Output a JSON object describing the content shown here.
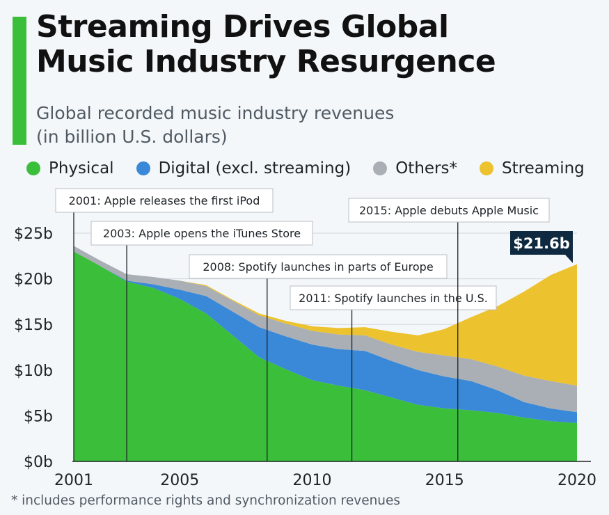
{
  "header": {
    "title_line1": "Streaming Drives Global",
    "title_line2": "Music Industry Resurgence",
    "subtitle_line1": "Global recorded music industry revenues",
    "subtitle_line2": "(in billion U.S. dollars)"
  },
  "footnote": "* includes performance rights and synchronization revenues",
  "colors": {
    "physical": "#3bbf3b",
    "digital": "#3a88d8",
    "others": "#a9afb5",
    "streaming": "#ecc22e",
    "accent": "#3bbf3b",
    "callout_bg": "#0f2a40"
  },
  "chart_data": {
    "type": "area",
    "stacked": true,
    "x": [
      2001,
      2002,
      2003,
      2004,
      2005,
      2006,
      2007,
      2008,
      2009,
      2010,
      2011,
      2012,
      2013,
      2014,
      2015,
      2016,
      2017,
      2018,
      2019,
      2020
    ],
    "series": [
      {
        "name": "Physical",
        "values": [
          23.0,
          21.4,
          19.7,
          19.0,
          17.8,
          16.2,
          13.8,
          11.4,
          10.1,
          8.9,
          8.3,
          7.8,
          7.0,
          6.2,
          5.8,
          5.6,
          5.3,
          4.8,
          4.4,
          4.2
        ]
      },
      {
        "name": "Digital (excl. streaming)",
        "values": [
          0.0,
          0.0,
          0.1,
          0.4,
          1.0,
          1.9,
          2.6,
          3.3,
          3.6,
          3.9,
          4.0,
          4.3,
          4.0,
          3.8,
          3.5,
          3.2,
          2.5,
          1.7,
          1.4,
          1.2
        ]
      },
      {
        "name": "Others*",
        "values": [
          0.6,
          0.6,
          0.7,
          0.8,
          1.0,
          1.1,
          1.2,
          1.3,
          1.4,
          1.5,
          1.6,
          1.7,
          1.8,
          2.0,
          2.3,
          2.4,
          2.6,
          2.9,
          3.0,
          2.9
        ]
      },
      {
        "name": "Streaming",
        "values": [
          0.0,
          0.0,
          0.0,
          0.0,
          0.0,
          0.1,
          0.1,
          0.2,
          0.3,
          0.5,
          0.7,
          0.9,
          1.4,
          1.8,
          2.9,
          4.6,
          6.6,
          9.2,
          11.6,
          13.3
        ]
      }
    ],
    "legend": [
      "Physical",
      "Digital (excl. streaming)",
      "Others*",
      "Streaming"
    ],
    "legend_position": "top-left",
    "title": "Streaming Drives Global Music Industry Resurgence",
    "subtitle": "Global recorded music industry revenues (in billion U.S. dollars)",
    "xlabel": "",
    "ylabel": "",
    "xlim": [
      2001,
      2020
    ],
    "ylim": [
      0,
      25
    ],
    "y_ticks": [
      0,
      5,
      10,
      15,
      20,
      25
    ],
    "y_tick_labels": [
      "$0b",
      "$5b",
      "$10b",
      "$15b",
      "$20b",
      "$25b"
    ],
    "x_ticks": [
      2001,
      2005,
      2010,
      2015,
      2020
    ],
    "x_tick_labels": [
      "2001",
      "2005",
      "2010",
      "2015",
      "2020"
    ],
    "grid": true,
    "annotations": [
      {
        "year": 2001,
        "text": "2001: Apple releases the first iPod"
      },
      {
        "year": 2003,
        "text": "2003: Apple opens the iTunes Store"
      },
      {
        "year": 2008.3,
        "text": "2008: Spotify launches in parts of Europe"
      },
      {
        "year": 2011.5,
        "text": "2011: Spotify launches in the U.S."
      },
      {
        "year": 2015.5,
        "text": "2015: Apple debuts Apple Music"
      }
    ],
    "total_callout": {
      "year": 2020,
      "text": "$21.6b"
    }
  }
}
